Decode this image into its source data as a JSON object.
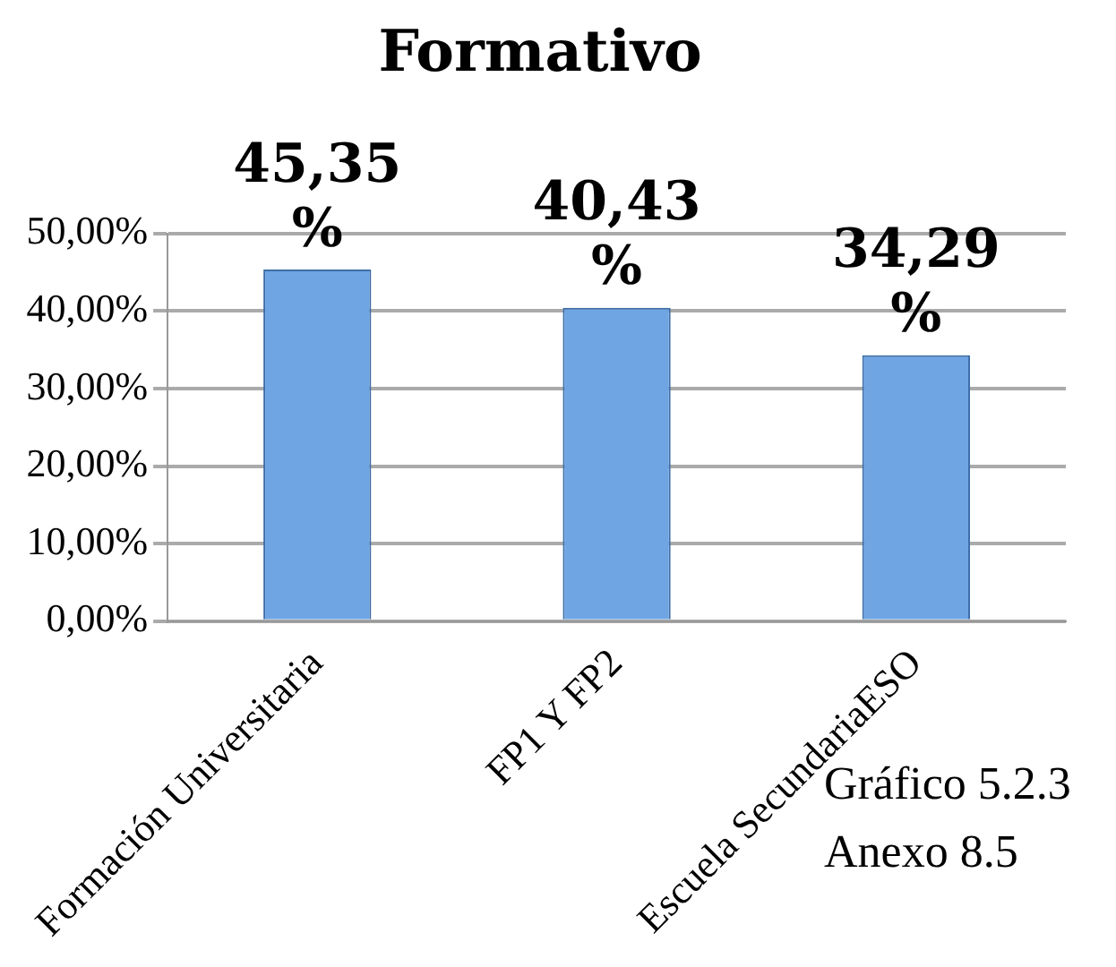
{
  "chart_data": {
    "type": "bar",
    "title": "Formativo",
    "categories": [
      "Formación Universitaria",
      "FP1 Y FP2",
      "Escuela SecundariaESO"
    ],
    "values": [
      45.35,
      40.43,
      34.29
    ],
    "value_labels": [
      "45,35 %",
      "40,43 %",
      "34,29 %"
    ],
    "color": "#6fa5e3",
    "ylim": [
      0,
      50
    ],
    "yticks": [
      {
        "value": 0,
        "label": "0,00%"
      },
      {
        "value": 10,
        "label": "10,00%"
      },
      {
        "value": 20,
        "label": "20,00%"
      },
      {
        "value": 30,
        "label": "30,00%"
      },
      {
        "value": 40,
        "label": "40,00%"
      },
      {
        "value": 50,
        "label": "50,00%"
      }
    ],
    "grid": "y",
    "annotations": [
      "Gráfico 5.2.3",
      "Anexo 8.5"
    ]
  }
}
